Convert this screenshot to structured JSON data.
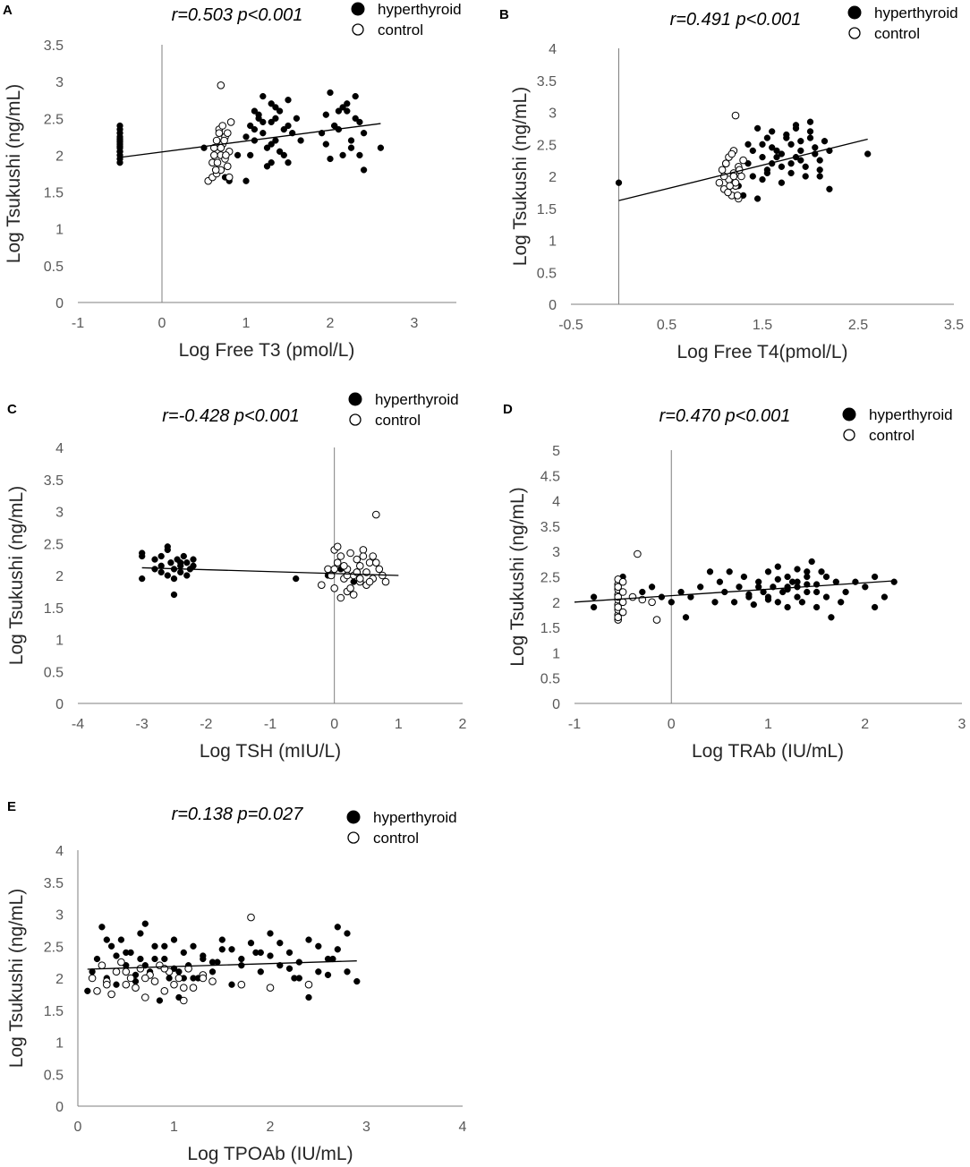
{
  "colors": {
    "hyperthyroid": "#000000",
    "control": "#ffffff",
    "marker_edge": "#000000",
    "axis": "#7f7f7f",
    "tick_text": "#595959"
  },
  "chart_data": [
    {
      "panel": "A",
      "type": "scatter",
      "stats": "r=0.503  p<0.001",
      "xlabel": "Log Free T3 (pmol/L)",
      "ylabel": "Log Tsukushi (ng/mL)",
      "xlim": [
        -1,
        3.5
      ],
      "ylim": [
        0,
        3.5
      ],
      "xticks": [
        -1,
        0,
        1,
        2,
        3
      ],
      "yticks": [
        0,
        0.5,
        1,
        1.5,
        2,
        2.5,
        3,
        3.5
      ],
      "legend": [
        "hyperthyroid",
        "control"
      ],
      "series": [
        {
          "name": "hyperthyroid",
          "x": [
            -0.5,
            -0.5,
            -0.5,
            -0.5,
            -0.5,
            -0.5,
            -0.5,
            -0.5,
            -0.5,
            -0.5,
            -0.5,
            -0.5,
            -0.5,
            -0.5,
            -0.5,
            0.5,
            0.75,
            0.8,
            0.9,
            1.0,
            1.05,
            1.1,
            1.1,
            1.15,
            1.2,
            1.2,
            1.25,
            1.3,
            1.3,
            1.35,
            1.35,
            1.4,
            1.45,
            1.5,
            1.5,
            1.55,
            1.6,
            1.65,
            1.0,
            1.1,
            1.2,
            1.3,
            1.4,
            1.25,
            1.15,
            1.35,
            1.45,
            1.05,
            1.5,
            1.3,
            1.9,
            1.95,
            2.0,
            2.05,
            2.1,
            2.15,
            2.2,
            2.25,
            2.3,
            2.35,
            2.4,
            2.0,
            2.1,
            2.2,
            2.3,
            1.95,
            2.05,
            2.15,
            2.25,
            2.35,
            2.4,
            2.6
          ],
          "y": [
            1.9,
            1.95,
            2.0,
            2.05,
            2.1,
            2.12,
            2.15,
            2.18,
            2.2,
            2.22,
            2.25,
            2.3,
            2.35,
            2.4,
            2.05,
            2.1,
            1.7,
            1.65,
            2.0,
            1.65,
            2.4,
            2.6,
            2.2,
            2.5,
            2.8,
            2.3,
            2.1,
            2.7,
            1.9,
            2.5,
            2.2,
            2.6,
            2.0,
            2.4,
            2.75,
            2.3,
            2.5,
            2.2,
            2.25,
            2.35,
            2.45,
            2.15,
            2.05,
            1.85,
            2.55,
            2.65,
            2.35,
            2.0,
            1.9,
            2.45,
            2.3,
            2.55,
            2.85,
            2.4,
            2.6,
            2.0,
            2.7,
            2.2,
            2.5,
            2.45,
            2.3,
            1.95,
            2.35,
            2.6,
            2.8,
            2.15,
            2.4,
            2.65,
            2.1,
            2.0,
            1.8,
            2.1
          ]
        },
        {
          "name": "control",
          "x": [
            0.55,
            0.6,
            0.6,
            0.62,
            0.65,
            0.65,
            0.68,
            0.7,
            0.7,
            0.72,
            0.72,
            0.75,
            0.75,
            0.78,
            0.78,
            0.8,
            0.8,
            0.82,
            0.62,
            0.66,
            0.7,
            0.74,
            0.64,
            0.68,
            0.76,
            0.7
          ],
          "y": [
            1.65,
            1.7,
            1.9,
            2.1,
            1.75,
            2.2,
            2.35,
            1.8,
            2.0,
            2.15,
            2.4,
            1.95,
            2.25,
            1.85,
            2.3,
            2.05,
            1.7,
            2.45,
            2.0,
            1.9,
            2.1,
            2.2,
            1.8,
            2.3,
            2.0,
            2.95
          ]
        }
      ],
      "trendline": {
        "x": [
          -0.5,
          2.6
        ],
        "y": [
          1.97,
          2.43
        ]
      }
    },
    {
      "panel": "B",
      "type": "scatter",
      "stats": "r=0.491  p<0.001",
      "xlabel": "Log Free T4(pmol/L)",
      "ylabel": "Log Tsukushi  (ng/mL)",
      "xlim": [
        -0.5,
        3.5
      ],
      "ylim": [
        0,
        4
      ],
      "xticks": [
        -0.5,
        0.5,
        1.5,
        2.5,
        3.5
      ],
      "yticks": [
        0,
        0.5,
        1,
        1.5,
        2,
        2.5,
        3,
        3.5,
        4
      ],
      "legend": [
        "hyperthyroid",
        "control"
      ],
      "series": [
        {
          "name": "hyperthyroid",
          "x": [
            0.0,
            1.3,
            1.35,
            1.4,
            1.45,
            1.5,
            1.55,
            1.6,
            1.65,
            1.7,
            1.75,
            1.8,
            1.85,
            1.9,
            1.95,
            2.0,
            2.05,
            2.1,
            2.15,
            2.2,
            1.4,
            1.5,
            1.6,
            1.7,
            1.8,
            1.9,
            2.0,
            2.1,
            1.45,
            1.55,
            1.65,
            1.75,
            1.85,
            1.95,
            2.05,
            1.35,
            1.5,
            1.7,
            1.9,
            2.1,
            1.6,
            1.8,
            2.0,
            2.2,
            2.6,
            1.25,
            1.55,
            1.85
          ],
          "y": [
            1.9,
            1.7,
            2.2,
            2.4,
            1.65,
            2.5,
            2.1,
            2.7,
            2.3,
            1.9,
            2.6,
            2.2,
            2.8,
            2.4,
            2.0,
            2.7,
            2.35,
            2.1,
            2.55,
            1.8,
            2.0,
            2.3,
            2.45,
            2.15,
            2.5,
            2.25,
            2.6,
            2.0,
            2.75,
            2.05,
            2.4,
            2.65,
            2.3,
            2.15,
            2.45,
            2.5,
            1.95,
            2.35,
            2.55,
            2.25,
            2.2,
            2.05,
            2.85,
            2.4,
            2.35,
            1.85,
            2.6,
            2.75
          ]
        },
        {
          "name": "control",
          "x": [
            1.05,
            1.08,
            1.1,
            1.12,
            1.15,
            1.15,
            1.18,
            1.2,
            1.2,
            1.22,
            1.25,
            1.25,
            1.28,
            1.3,
            1.1,
            1.14,
            1.18,
            1.22,
            1.26,
            1.12,
            1.16,
            1.2,
            1.24,
            1.22
          ],
          "y": [
            1.9,
            2.1,
            1.8,
            2.2,
            1.95,
            2.3,
            1.7,
            2.05,
            2.4,
            1.85,
            2.15,
            1.65,
            2.0,
            2.25,
            2.0,
            1.75,
            2.35,
            1.9,
            2.1,
            2.2,
            1.85,
            2.0,
            1.7,
            2.95
          ]
        }
      ],
      "trendline": {
        "x": [
          0.0,
          2.6
        ],
        "y": [
          1.62,
          2.58
        ]
      }
    },
    {
      "panel": "C",
      "type": "scatter",
      "stats": "r=-0.428  p<0.001",
      "xlabel": "Log TSH (mIU/L)",
      "ylabel": "Log Tsukushi  (ng/mL)",
      "xlim": [
        -4,
        2
      ],
      "ylim": [
        0,
        4
      ],
      "xticks": [
        -4,
        -3,
        -2,
        -1,
        0,
        1,
        2
      ],
      "yticks": [
        0,
        0.5,
        1,
        1.5,
        2,
        2.5,
        3,
        3.5,
        4
      ],
      "legend": [
        "hyperthyroid",
        "control"
      ],
      "series": [
        {
          "name": "hyperthyroid",
          "x": [
            -3.0,
            -3.0,
            -3.0,
            -2.8,
            -2.8,
            -2.7,
            -2.7,
            -2.6,
            -2.6,
            -2.55,
            -2.5,
            -2.5,
            -2.45,
            -2.4,
            -2.4,
            -2.35,
            -2.3,
            -2.3,
            -2.25,
            -2.2,
            -2.2,
            -2.7,
            -2.5,
            -2.4,
            -2.6,
            -0.6,
            -0.1,
            0.1,
            0.3,
            0.5
          ],
          "y": [
            1.95,
            2.3,
            2.35,
            2.1,
            2.25,
            2.05,
            2.15,
            2.4,
            2.0,
            2.2,
            1.7,
            2.1,
            2.25,
            2.05,
            2.15,
            2.3,
            2.0,
            2.2,
            2.1,
            2.25,
            2.15,
            2.3,
            1.95,
            2.2,
            2.45,
            1.95,
            2.0,
            2.1,
            1.9,
            2.05
          ]
        },
        {
          "name": "control",
          "x": [
            -0.2,
            -0.1,
            -0.05,
            0.0,
            0.0,
            0.05,
            0.1,
            0.1,
            0.15,
            0.2,
            0.2,
            0.25,
            0.3,
            0.3,
            0.35,
            0.4,
            0.4,
            0.45,
            0.5,
            0.5,
            0.55,
            0.6,
            0.6,
            0.7,
            0.75,
            0.8,
            0.05,
            0.15,
            0.25,
            0.35,
            0.45,
            0.55,
            0.65,
            0.0,
            0.2,
            0.4,
            0.65
          ],
          "y": [
            1.85,
            2.1,
            2.0,
            2.4,
            1.8,
            2.2,
            1.65,
            2.3,
            1.95,
            2.1,
            1.75,
            2.35,
            2.0,
            1.7,
            2.25,
            1.9,
            2.15,
            2.4,
            1.85,
            2.05,
            2.2,
            1.95,
            2.3,
            2.1,
            2.0,
            1.9,
            2.45,
            2.15,
            1.8,
            2.05,
            2.3,
            1.9,
            2.2,
            2.1,
            2.0,
            1.95,
            2.95
          ]
        }
      ],
      "trendline": {
        "x": [
          -3.0,
          1.0
        ],
        "y": [
          2.12,
          2.0
        ]
      }
    },
    {
      "panel": "D",
      "type": "scatter",
      "stats": "r=0.470  p<0.001",
      "xlabel": "Log TRAb (IU/mL)",
      "ylabel": "Log Tsukushi  (ng/mL)",
      "xlim": [
        -1,
        3
      ],
      "ylim": [
        0,
        5
      ],
      "xticks": [
        -1,
        0,
        1,
        2,
        3
      ],
      "yticks": [
        0,
        0.5,
        1,
        1.5,
        2,
        2.5,
        3,
        3.5,
        4,
        4.5,
        5
      ],
      "legend": [
        "hyperthyroid",
        "control"
      ],
      "series": [
        {
          "name": "hyperthyroid",
          "x": [
            -0.8,
            -0.8,
            -0.5,
            -0.5,
            -0.4,
            -0.3,
            -0.2,
            -0.1,
            0.0,
            0.1,
            0.15,
            0.2,
            0.3,
            0.4,
            0.45,
            0.5,
            0.55,
            0.6,
            0.65,
            0.7,
            0.75,
            0.8,
            0.85,
            0.9,
            0.95,
            1.0,
            1.05,
            1.1,
            1.1,
            1.15,
            1.2,
            1.2,
            1.25,
            1.3,
            1.3,
            1.35,
            1.4,
            1.4,
            1.45,
            1.5,
            1.5,
            1.55,
            1.6,
            1.65,
            1.7,
            1.75,
            1.8,
            1.9,
            2.0,
            2.1,
            2.2,
            2.3,
            0.9,
            1.0,
            1.1,
            1.2,
            1.3,
            1.4,
            1.5,
            1.6,
            1.0,
            1.2,
            1.4,
            0.8,
            1.3,
            2.1
          ],
          "y": [
            1.9,
            2.1,
            2.5,
            2.0,
            2.1,
            2.2,
            2.3,
            2.1,
            2.0,
            2.2,
            1.7,
            2.1,
            2.3,
            2.6,
            2.0,
            2.4,
            2.2,
            2.6,
            2.0,
            2.3,
            2.5,
            2.1,
            1.95,
            2.4,
            2.2,
            2.6,
            2.3,
            2.0,
            2.7,
            2.2,
            2.5,
            1.9,
            2.4,
            2.3,
            2.65,
            2.0,
            2.5,
            2.2,
            2.8,
            2.35,
            1.9,
            2.6,
            2.1,
            1.7,
            2.4,
            2.0,
            2.2,
            2.4,
            2.3,
            2.5,
            2.1,
            2.4,
            2.3,
            2.1,
            2.45,
            2.3,
            2.1,
            2.35,
            2.2,
            2.5,
            2.05,
            2.25,
            2.6,
            2.15,
            2.4,
            1.9
          ]
        },
        {
          "name": "control",
          "x": [
            -0.55,
            -0.55,
            -0.55,
            -0.55,
            -0.55,
            -0.55,
            -0.55,
            -0.55,
            -0.55,
            -0.55,
            -0.55,
            -0.55,
            -0.55,
            -0.5,
            -0.5,
            -0.5,
            -0.5,
            -0.4,
            -0.3,
            -0.2,
            -0.35,
            -0.15
          ],
          "y": [
            1.65,
            1.75,
            1.85,
            1.95,
            2.05,
            2.15,
            2.25,
            2.35,
            2.45,
            1.7,
            1.9,
            2.1,
            2.3,
            2.0,
            2.2,
            1.8,
            2.4,
            2.1,
            2.05,
            2.0,
            2.95,
            1.65
          ]
        }
      ],
      "trendline": {
        "x": [
          -1.0,
          2.3
        ],
        "y": [
          2.0,
          2.42
        ]
      }
    },
    {
      "panel": "E",
      "type": "scatter",
      "stats": "r=0.138  p=0.027",
      "xlabel": "Log TPOAb (IU/mL)",
      "ylabel": "Log Tsukushi  (ng/mL)",
      "xlim": [
        0,
        4
      ],
      "ylim": [
        0,
        4
      ],
      "xticks": [
        0,
        1,
        2,
        3,
        4
      ],
      "yticks": [
        0,
        0.5,
        1,
        1.5,
        2,
        2.5,
        3,
        3.5,
        4
      ],
      "legend": [
        "hyperthyroid",
        "control"
      ],
      "series": [
        {
          "name": "hyperthyroid",
          "x": [
            0.1,
            0.15,
            0.2,
            0.25,
            0.3,
            0.35,
            0.4,
            0.45,
            0.5,
            0.55,
            0.6,
            0.65,
            0.7,
            0.75,
            0.8,
            0.85,
            0.9,
            0.95,
            1.0,
            1.05,
            1.1,
            1.15,
            1.2,
            1.25,
            1.3,
            1.4,
            1.5,
            1.6,
            1.7,
            1.8,
            1.9,
            2.0,
            2.1,
            2.2,
            2.3,
            2.4,
            2.5,
            2.6,
            2.7,
            2.8,
            2.9,
            0.3,
            0.5,
            0.7,
            0.9,
            1.1,
            1.3,
            1.5,
            1.7,
            1.9,
            2.1,
            2.3,
            2.5,
            2.7,
            0.4,
            0.6,
            0.8,
            1.0,
            1.2,
            1.4,
            1.6,
            2.0,
            2.2,
            2.4,
            2.6,
            2.8,
            0.25,
            0.65,
            1.05,
            1.45,
            1.85,
            2.25,
            2.65
          ],
          "y": [
            1.8,
            2.1,
            2.3,
            2.8,
            2.0,
            2.5,
            1.9,
            2.6,
            2.2,
            2.4,
            1.95,
            2.7,
            2.85,
            2.1,
            2.5,
            1.65,
            2.3,
            2.0,
            2.6,
            1.7,
            2.4,
            2.2,
            2.5,
            2.0,
            2.35,
            2.1,
            2.45,
            1.9,
            2.3,
            2.55,
            2.1,
            2.7,
            2.2,
            2.4,
            2.0,
            1.7,
            2.5,
            2.3,
            2.8,
            2.1,
            1.95,
            2.6,
            2.4,
            2.2,
            2.5,
            2.0,
            2.3,
            2.6,
            2.2,
            2.4,
            2.55,
            2.25,
            2.1,
            2.45,
            2.35,
            2.05,
            2.3,
            2.15,
            2.0,
            2.25,
            2.45,
            2.35,
            2.15,
            2.6,
            2.05,
            2.7,
            2.2,
            2.3,
            2.1,
            2.25,
            2.4,
            2.0,
            2.3
          ]
        },
        {
          "name": "control",
          "x": [
            0.15,
            0.2,
            0.25,
            0.3,
            0.35,
            0.4,
            0.45,
            0.5,
            0.55,
            0.6,
            0.65,
            0.7,
            0.75,
            0.8,
            0.85,
            0.9,
            0.95,
            1.0,
            1.05,
            1.1,
            1.15,
            1.2,
            1.3,
            1.4,
            0.3,
            0.5,
            0.7,
            0.9,
            1.1,
            1.3,
            1.7,
            2.0,
            2.4,
            1.8
          ],
          "y": [
            2.0,
            1.8,
            2.2,
            1.95,
            1.75,
            2.1,
            2.25,
            1.9,
            2.0,
            1.85,
            2.15,
            1.7,
            2.05,
            1.95,
            2.2,
            1.8,
            2.1,
            1.9,
            2.0,
            1.65,
            2.15,
            1.85,
            2.05,
            1.95,
            1.9,
            2.1,
            2.0,
            2.15,
            1.85,
            2.0,
            1.9,
            1.85,
            1.9,
            2.95
          ]
        }
      ],
      "trendline": {
        "x": [
          0.1,
          2.9
        ],
        "y": [
          2.14,
          2.27
        ]
      }
    }
  ]
}
